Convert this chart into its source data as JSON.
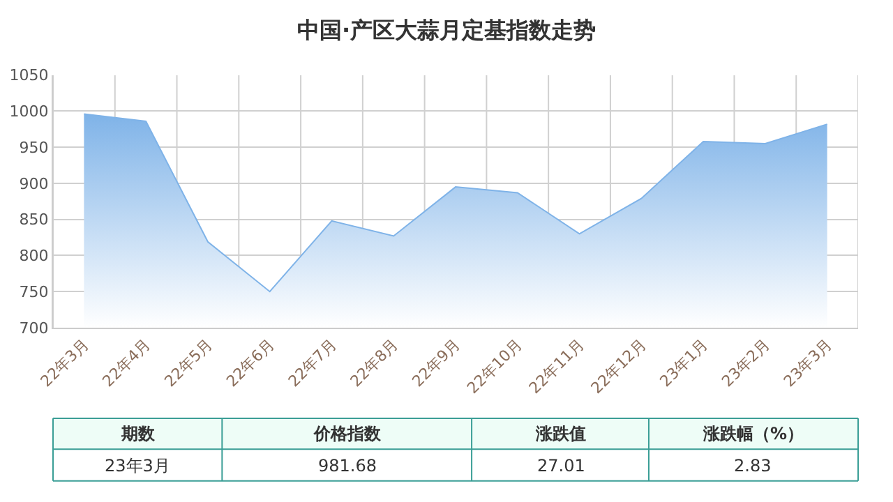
{
  "chart_data": {
    "type": "area",
    "title": "中国·产区大蒜月定基指数走势",
    "categories": [
      "22年3月",
      "22年4月",
      "22年5月",
      "22年6月",
      "22年7月",
      "22年8月",
      "22年9月",
      "22年10月",
      "22年11月",
      "22年12月",
      "23年1月",
      "23年2月",
      "23年3月"
    ],
    "series": [
      {
        "color": "#7fb3e8",
        "values": [
          996,
          986,
          819,
          750,
          848,
          827,
          895,
          887,
          830,
          879,
          958,
          955,
          982
        ]
      }
    ],
    "ylim": [
      700,
      1050
    ],
    "yticks": [
      700,
      750,
      800,
      850,
      900,
      950,
      1000,
      1050
    ],
    "grid": true,
    "annotations": [
      "期数",
      "价格指数",
      "涨跌值",
      "涨跌幅（%）",
      "23年3月",
      "981.68",
      "27.01",
      "2.83"
    ]
  }
}
